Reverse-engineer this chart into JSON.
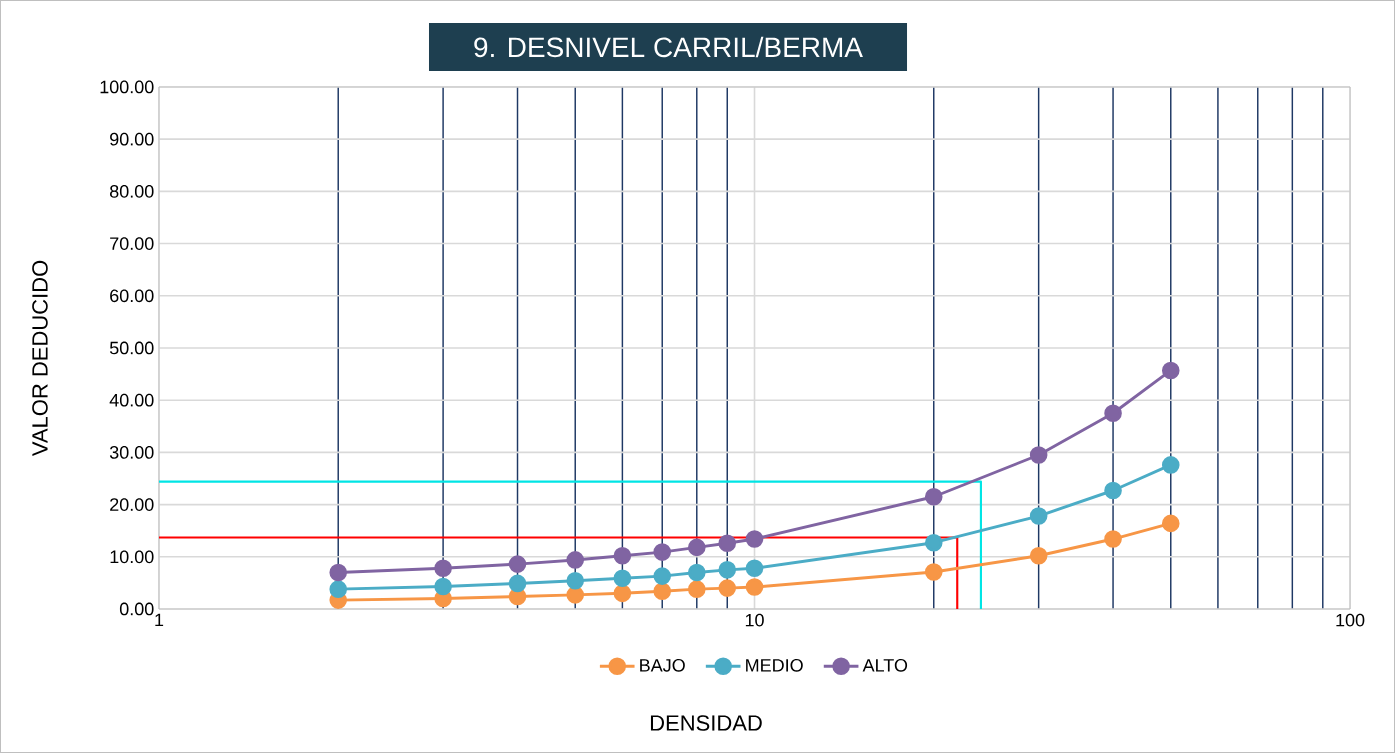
{
  "chart_data": {
    "type": "line",
    "title": "9. DESNIVEL CARRIL/BERMA",
    "xlabel": "DENSIDAD",
    "ylabel": "VALOR DEDUCIDO",
    "x": [
      2,
      3,
      4,
      5,
      6,
      7,
      8,
      9,
      10,
      20,
      30,
      40,
      50
    ],
    "series": [
      {
        "name": "BAJO",
        "color": "#f79646",
        "values": [
          1.7,
          2.0,
          2.4,
          2.7,
          3.0,
          3.4,
          3.8,
          4.0,
          4.2,
          7.1,
          10.2,
          13.4,
          16.4
        ]
      },
      {
        "name": "MEDIO",
        "color": "#4bacc6",
        "values": [
          3.8,
          4.3,
          4.9,
          5.4,
          5.9,
          6.3,
          7.0,
          7.5,
          7.8,
          12.7,
          17.8,
          22.7,
          27.6
        ]
      },
      {
        "name": "ALTO",
        "color": "#8064a2",
        "values": [
          7.0,
          7.8,
          8.6,
          9.4,
          10.2,
          10.9,
          11.8,
          12.6,
          13.4,
          21.5,
          29.5,
          37.5,
          45.7
        ]
      },
      {
        "color": "#ff0000",
        "x": [
          21.9,
          21.9,
          1
        ],
        "values": [
          0,
          13.7,
          13.7
        ],
        "marker": "none"
      },
      {
        "color": "#00e5e5",
        "x": [
          24.0,
          24.0,
          1
        ],
        "values": [
          0,
          24.4,
          24.4
        ],
        "marker": "none"
      }
    ],
    "log": "x",
    "xlim": [
      1,
      100
    ],
    "xticks": [
      1,
      {
        "value": 2,
        "label": null
      },
      {
        "value": 3,
        "label": null
      },
      {
        "value": 4,
        "label": null
      },
      {
        "value": 5,
        "label": null
      },
      {
        "value": 6,
        "label": null
      },
      {
        "value": 7,
        "label": null
      },
      {
        "value": 8,
        "label": null
      },
      {
        "value": 9,
        "label": null
      },
      10,
      {
        "value": 20,
        "label": null
      },
      {
        "value": 30,
        "label": null
      },
      {
        "value": 40,
        "label": null
      },
      {
        "value": 50,
        "label": null
      },
      {
        "value": 60,
        "label": null
      },
      {
        "value": 70,
        "label": null
      },
      {
        "value": 80,
        "label": null
      },
      {
        "value": 90,
        "label": null
      },
      100
    ],
    "ylim": [
      0,
      100
    ],
    "yticks": [
      {
        "value": 0,
        "label": "0.00"
      },
      {
        "value": 10,
        "label": "10.00"
      },
      {
        "value": 20,
        "label": "20.00"
      },
      {
        "value": 30,
        "label": "30.00"
      },
      {
        "value": 40,
        "label": "40.00"
      },
      {
        "value": 50,
        "label": "50.00"
      },
      {
        "value": 60,
        "label": "60.00"
      },
      {
        "value": 70,
        "label": "70.00"
      },
      {
        "value": 80,
        "label": "80.00"
      },
      {
        "value": 90,
        "label": "90.00"
      },
      {
        "value": 100,
        "label": "100.00"
      }
    ],
    "grid": true,
    "legend": "bottom",
    "marker": "circle"
  }
}
